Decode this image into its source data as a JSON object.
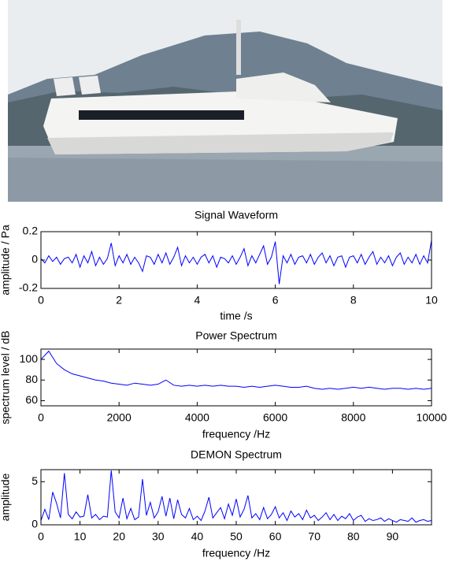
{
  "chart_data": [
    {
      "type": "line",
      "title": "Signal Waveform",
      "xlabel": "time /s",
      "ylabel": "amplitude / Pa",
      "color": "#0000ff",
      "xlim": [
        0,
        10
      ],
      "xticks": [
        0,
        2,
        4,
        6,
        8,
        10
      ],
      "ylim": [
        -0.2,
        0.2
      ],
      "yticks": [
        -0.2,
        0,
        0.2
      ],
      "x": [
        0,
        0.1,
        0.2,
        0.3,
        0.4,
        0.5,
        0.6,
        0.7,
        0.8,
        0.9,
        1,
        1.1,
        1.2,
        1.3,
        1.4,
        1.5,
        1.6,
        1.7,
        1.8,
        1.9,
        2,
        2.1,
        2.2,
        2.3,
        2.4,
        2.5,
        2.6,
        2.7,
        2.8,
        2.9,
        3,
        3.1,
        3.2,
        3.3,
        3.4,
        3.5,
        3.6,
        3.7,
        3.8,
        3.9,
        4,
        4.1,
        4.2,
        4.3,
        4.4,
        4.5,
        4.6,
        4.7,
        4.8,
        4.9,
        5,
        5.1,
        5.2,
        5.3,
        5.4,
        5.5,
        5.6,
        5.7,
        5.8,
        5.9,
        6,
        6.1,
        6.2,
        6.3,
        6.4,
        6.5,
        6.6,
        6.7,
        6.8,
        6.9,
        7,
        7.1,
        7.2,
        7.3,
        7.4,
        7.5,
        7.6,
        7.7,
        7.8,
        7.9,
        8,
        8.1,
        8.2,
        8.3,
        8.4,
        8.5,
        8.6,
        8.7,
        8.8,
        8.9,
        9,
        9.1,
        9.2,
        9.3,
        9.4,
        9.5,
        9.6,
        9.7,
        9.8,
        9.9,
        10
      ],
      "values": [
        0.01,
        -0.02,
        0.03,
        -0.01,
        0.02,
        -0.03,
        0.01,
        0.02,
        -0.02,
        0.04,
        -0.05,
        0.03,
        -0.02,
        0.06,
        -0.04,
        0.02,
        -0.03,
        0.01,
        0.12,
        -0.04,
        0.03,
        -0.02,
        0.04,
        -0.03,
        0.02,
        -0.02,
        -0.08,
        0.03,
        0.02,
        -0.03,
        0.04,
        -0.02,
        0.05,
        -0.03,
        0.02,
        0.09,
        -0.04,
        0.03,
        -0.02,
        0.02,
        -0.03,
        0.02,
        0.04,
        -0.02,
        0.03,
        -0.05,
        0.02,
        0.01,
        -0.02,
        0.03,
        -0.03,
        0.02,
        0.08,
        -0.04,
        0.03,
        -0.02,
        0.04,
        0.1,
        -0.03,
        0.02,
        0.13,
        -0.17,
        0.03,
        -0.02,
        0.04,
        -0.03,
        0.02,
        0.03,
        -0.02,
        0.04,
        -0.03,
        0.02,
        0.05,
        -0.02,
        0.03,
        -0.04,
        0.02,
        0.03,
        -0.05,
        0.02,
        0.03,
        -0.02,
        0.04,
        -0.03,
        0.02,
        0.06,
        -0.03,
        0.02,
        -0.02,
        0.03,
        -0.04,
        0.02,
        0.05,
        -0.03,
        0.02,
        -0.02,
        0.04,
        -0.03,
        0.03,
        -0.02,
        0.14
      ]
    },
    {
      "type": "line",
      "title": "Power Spectrum",
      "xlabel": "frequency /Hz",
      "ylabel": "spectrum level / dB",
      "color": "#0000ff",
      "xlim": [
        0,
        10000
      ],
      "xticks": [
        0,
        2000,
        4000,
        6000,
        8000,
        10000
      ],
      "ylim": [
        55,
        110
      ],
      "yticks": [
        60,
        80,
        100
      ],
      "x": [
        0,
        200,
        400,
        600,
        800,
        1000,
        1200,
        1400,
        1600,
        1800,
        2000,
        2200,
        2400,
        2600,
        2800,
        3000,
        3200,
        3400,
        3600,
        3800,
        4000,
        4200,
        4400,
        4600,
        4800,
        5000,
        5200,
        5400,
        5600,
        5800,
        6000,
        6200,
        6400,
        6600,
        6800,
        7000,
        7200,
        7400,
        7600,
        7800,
        8000,
        8200,
        8400,
        8600,
        8800,
        9000,
        9200,
        9400,
        9600,
        9800,
        10000
      ],
      "values": [
        100,
        108,
        96,
        90,
        86,
        84,
        82,
        80,
        79,
        77,
        76,
        75,
        77,
        76,
        75,
        76,
        80,
        75,
        74,
        75,
        74,
        75,
        74,
        75,
        74,
        74,
        73,
        74,
        73,
        74,
        75,
        74,
        73,
        73,
        74,
        72,
        71,
        72,
        71,
        72,
        73,
        72,
        73,
        72,
        71,
        72,
        72,
        71,
        72,
        71,
        72
      ]
    },
    {
      "type": "line",
      "title": "DEMON Spectrum",
      "xlabel": "frequency /Hz",
      "ylabel": "amplitude",
      "color": "#0000ff",
      "xlim": [
        0,
        100
      ],
      "xticks": [
        0,
        10,
        20,
        30,
        40,
        50,
        60,
        70,
        80,
        90
      ],
      "ylim": [
        0,
        6.4
      ],
      "yticks": [
        0,
        5
      ],
      "x": [
        0,
        1,
        2,
        3,
        4,
        5,
        6,
        7,
        8,
        9,
        10,
        11,
        12,
        13,
        14,
        15,
        16,
        17,
        18,
        19,
        20,
        21,
        22,
        23,
        24,
        25,
        26,
        27,
        28,
        29,
        30,
        31,
        32,
        33,
        34,
        35,
        36,
        37,
        38,
        39,
        40,
        41,
        42,
        43,
        44,
        45,
        46,
        47,
        48,
        49,
        50,
        51,
        52,
        53,
        54,
        55,
        56,
        57,
        58,
        59,
        60,
        61,
        62,
        63,
        64,
        65,
        66,
        67,
        68,
        69,
        70,
        71,
        72,
        73,
        74,
        75,
        76,
        77,
        78,
        79,
        80,
        81,
        82,
        83,
        84,
        85,
        86,
        87,
        88,
        89,
        90,
        91,
        92,
        93,
        94,
        95,
        96,
        97,
        98,
        99,
        100
      ],
      "values": [
        0.5,
        1.8,
        0.6,
        3.8,
        2.5,
        0.8,
        6.0,
        1.2,
        0.7,
        1.5,
        0.9,
        1.0,
        3.5,
        0.8,
        1.2,
        0.6,
        1.0,
        0.9,
        6.3,
        1.5,
        0.8,
        3.1,
        0.7,
        1.9,
        0.6,
        0.9,
        5.3,
        1.1,
        2.6,
        0.8,
        1.5,
        3.3,
        1.0,
        3.1,
        0.7,
        2.9,
        1.2,
        0.8,
        1.9,
        0.6,
        1.0,
        0.5,
        1.6,
        3.2,
        0.8,
        1.4,
        2.0,
        0.7,
        2.4,
        1.1,
        3.0,
        0.9,
        1.8,
        3.4,
        0.8,
        1.3,
        0.6,
        2.0,
        0.7,
        1.2,
        2.1,
        0.8,
        1.4,
        0.5,
        1.6,
        0.9,
        1.3,
        0.6,
        1.7,
        0.8,
        1.1,
        0.5,
        0.9,
        1.4,
        0.6,
        1.2,
        0.5,
        1.0,
        0.7,
        1.3,
        0.5,
        0.9,
        1.1,
        0.4,
        0.7,
        0.5,
        0.6,
        0.8,
        0.4,
        0.7,
        0.5,
        0.3,
        0.6,
        0.5,
        0.4,
        0.8,
        0.3,
        0.5,
        0.6,
        0.4,
        0.5
      ]
    }
  ]
}
